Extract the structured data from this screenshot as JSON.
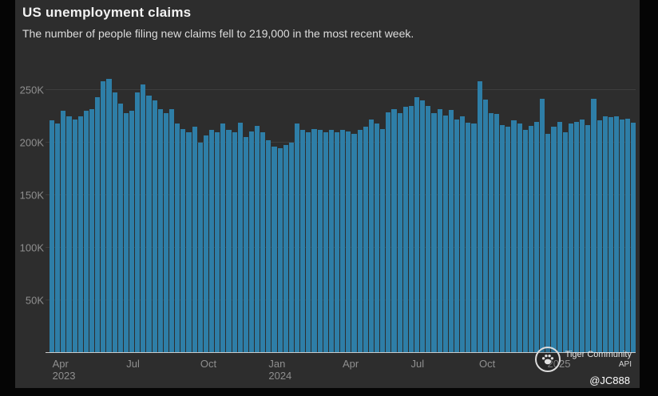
{
  "header": {
    "title": "US unemployment claims",
    "subtitle": "The number of people filing new claims fell to 219,000 in the most recent week."
  },
  "chart_data": {
    "type": "bar",
    "title": "US unemployment claims",
    "subtitle": "The number of people filing new claims fell to 219,000 in the most recent week.",
    "unit": "weekly initial unemployment claims, thousands",
    "latest_value": "219,000",
    "grid": true,
    "legend": "none",
    "bar_color": "#2e7ea7",
    "background_color": "#2d2d2d",
    "ylim_k": [
      0,
      265
    ],
    "values_k": [
      221,
      218,
      230,
      225,
      222,
      225,
      230,
      232,
      243,
      258,
      261,
      248,
      237,
      228,
      230,
      248,
      255,
      245,
      240,
      232,
      228,
      232,
      218,
      213,
      210,
      215,
      200,
      207,
      212,
      210,
      218,
      212,
      210,
      219,
      205,
      211,
      216,
      210,
      202,
      196,
      195,
      198,
      200,
      218,
      212,
      210,
      213,
      212,
      210,
      212,
      210,
      212,
      211,
      208,
      212,
      215,
      222,
      218,
      213,
      229,
      232,
      228,
      234,
      235,
      243,
      240,
      235,
      228,
      232,
      226,
      231,
      222,
      225,
      219,
      218,
      258,
      241,
      228,
      227,
      217,
      215,
      221,
      218,
      212,
      216,
      220,
      242,
      208,
      215,
      220,
      210,
      218,
      220,
      222,
      217,
      242,
      221,
      225,
      224,
      225,
      222,
      223,
      219
    ],
    "y_axis": {
      "ticks": [
        {
          "label": "50K",
          "value_k": 50
        },
        {
          "label": "100K",
          "value_k": 100
        },
        {
          "label": "150K",
          "value_k": 150
        },
        {
          "label": "200K",
          "value_k": 200
        },
        {
          "label": "250K",
          "value_k": 250
        }
      ]
    },
    "x_axis": {
      "ticks": [
        {
          "month": "Apr",
          "year": "2023",
          "index": 0
        },
        {
          "month": "Jul",
          "year": "",
          "index": 13
        },
        {
          "month": "Oct",
          "year": "",
          "index": 26
        },
        {
          "month": "Jan",
          "year": "2024",
          "index": 38
        },
        {
          "month": "Apr",
          "year": "",
          "index": 51
        },
        {
          "month": "Jul",
          "year": "",
          "index": 63
        },
        {
          "month": "Oct",
          "year": "",
          "index": 75
        },
        {
          "month": "",
          "year": "2025",
          "index": 87
        }
      ]
    }
  },
  "watermark": {
    "brand": "Tiger Community",
    "api_label": "API",
    "handle": "@JC888"
  }
}
